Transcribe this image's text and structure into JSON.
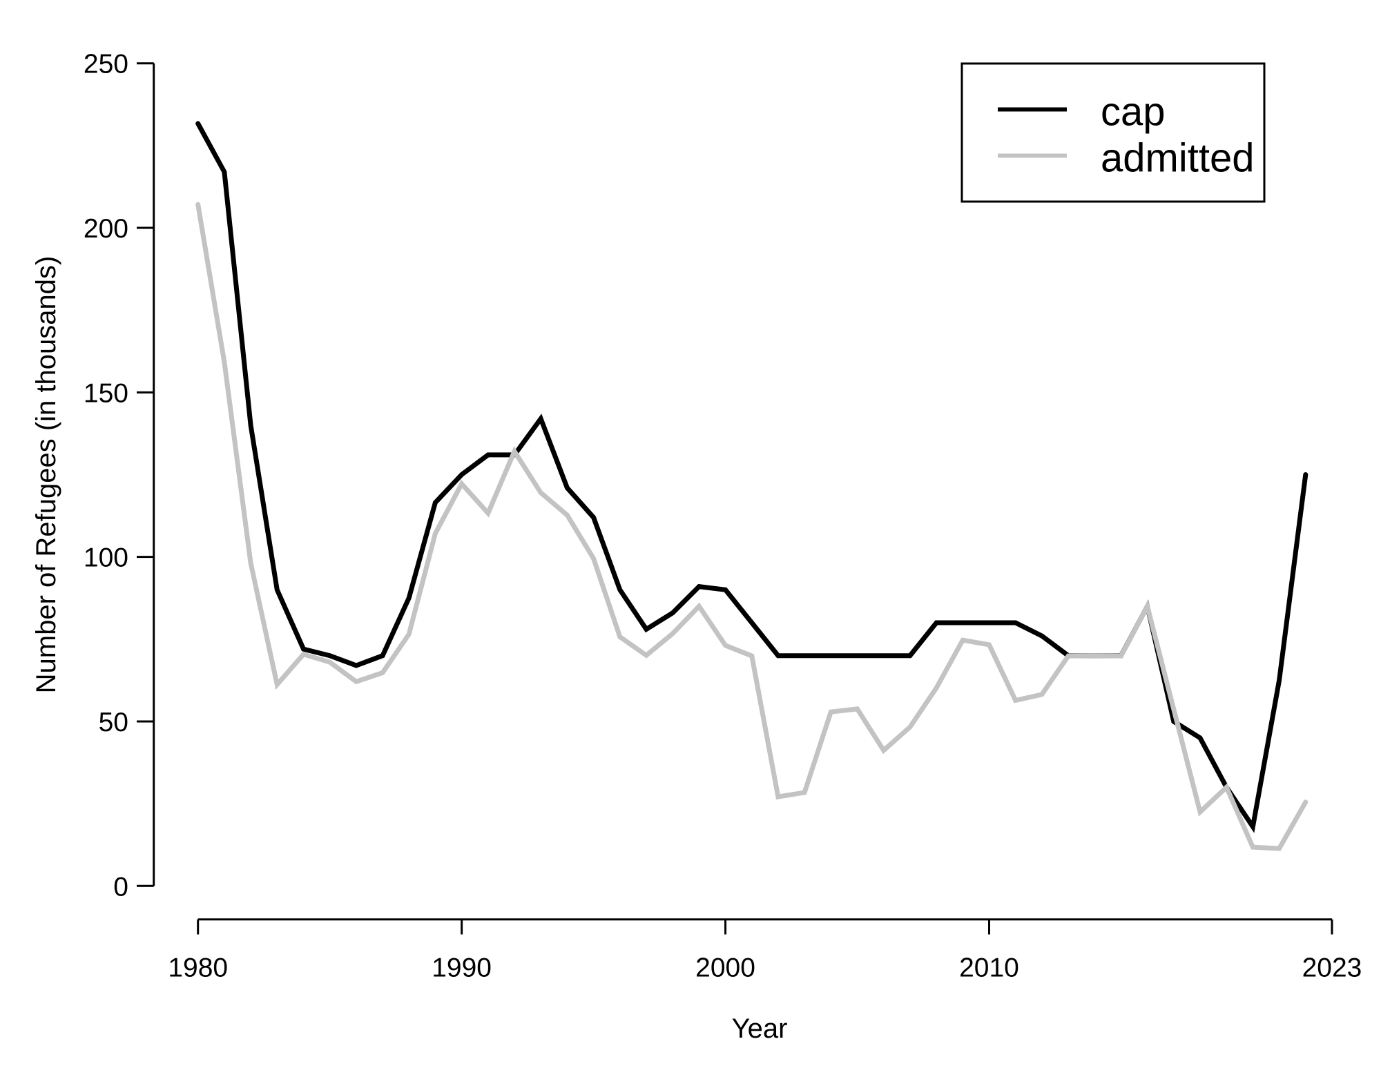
{
  "chart_data": {
    "type": "line",
    "title": "",
    "xlabel": "Year",
    "ylabel": "Number of Refugees (in thousands)",
    "x": [
      1980,
      1981,
      1982,
      1983,
      1984,
      1985,
      1986,
      1987,
      1988,
      1989,
      1990,
      1991,
      1992,
      1993,
      1994,
      1995,
      1996,
      1997,
      1998,
      1999,
      2000,
      2001,
      2002,
      2003,
      2004,
      2005,
      2006,
      2007,
      2008,
      2009,
      2010,
      2011,
      2012,
      2013,
      2014,
      2015,
      2016,
      2017,
      2018,
      2019,
      2020,
      2021,
      2022
    ],
    "series": [
      {
        "name": "cap",
        "color": "#000000",
        "values": [
          231.7,
          217,
          140,
          90,
          72,
          70,
          67,
          70,
          87.5,
          116.5,
          125,
          131,
          131,
          142,
          121,
          112,
          90,
          78,
          83,
          91,
          90,
          80,
          70,
          70,
          70,
          70,
          70,
          70,
          80,
          80,
          80,
          80,
          76,
          70,
          70,
          70,
          85,
          50,
          45,
          30,
          18,
          62.5,
          125
        ]
      },
      {
        "name": "admitted",
        "color": "#c3c3c3",
        "values": [
          207.1,
          159.2,
          98.1,
          61.2,
          70.4,
          68,
          62.1,
          64.8,
          76.5,
          107.1,
          122.2,
          113.3,
          132.1,
          119.5,
          112.7,
          99.5,
          75.7,
          70.1,
          76.7,
          85,
          73.1,
          69.9,
          27.1,
          28.4,
          52.9,
          53.8,
          41.2,
          48.3,
          60.2,
          74.7,
          73.3,
          56.4,
          58.2,
          69.9,
          70,
          69.9,
          85,
          53.7,
          22.5,
          30,
          11.8,
          11.4,
          25.5
        ]
      }
    ],
    "xlim": [
      1980,
      2023
    ],
    "ylim": [
      0,
      250
    ],
    "x_ticks": [
      1980,
      1990,
      2000,
      2010,
      2023
    ],
    "y_ticks": [
      0,
      50,
      100,
      150,
      200,
      250
    ],
    "grid": false,
    "legend_position": "topright"
  },
  "legend": {
    "items": [
      {
        "label": "cap",
        "color": "#000000"
      },
      {
        "label": "admitted",
        "color": "#c3c3c3"
      }
    ]
  }
}
